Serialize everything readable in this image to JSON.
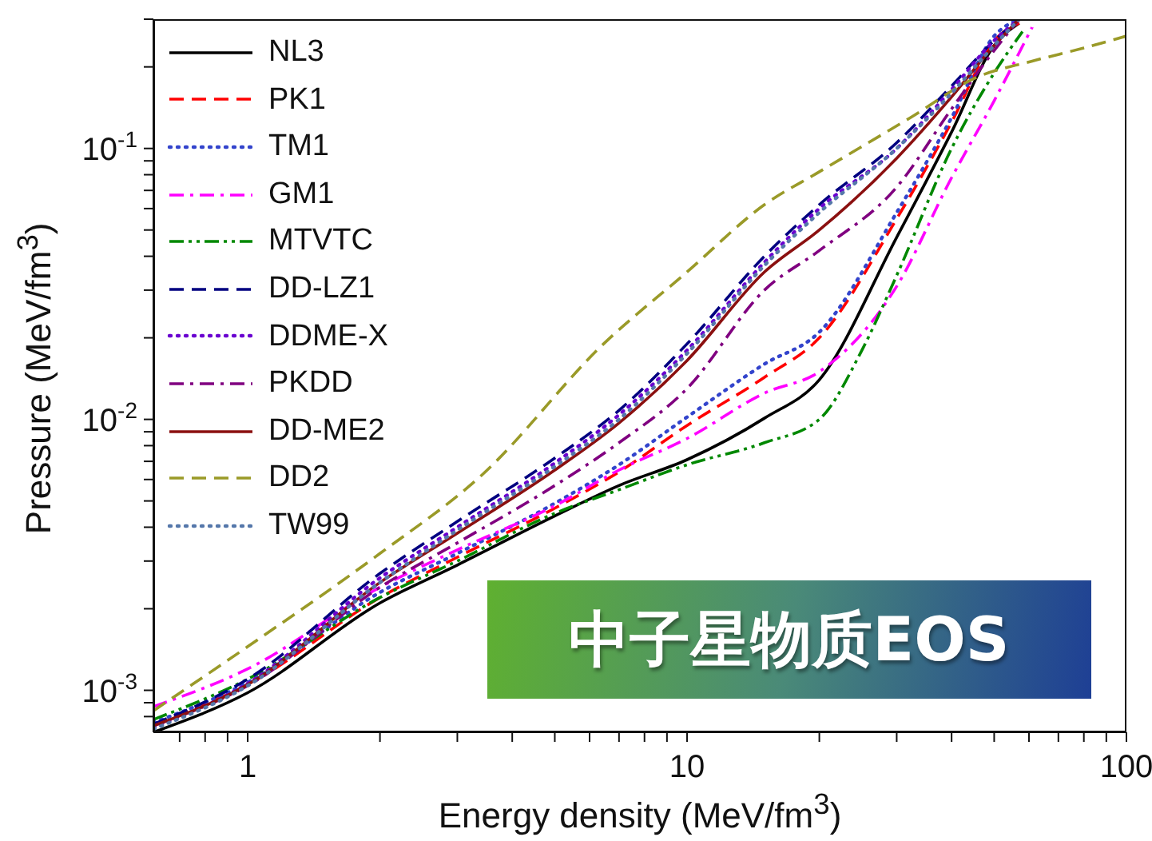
{
  "chart_data": {
    "type": "line",
    "xlabel": "Energy density (MeV/fm$^{3}$)",
    "ylabel": "Pressure (MeV/fm$^{3}$)",
    "log": "xy",
    "xlim": [
      0.61,
      100
    ],
    "ylim": [
      0.0007,
      0.3
    ],
    "xticks": [
      {
        "value": 0.7,
        "label": null
      },
      {
        "value": 0.8,
        "label": null
      },
      {
        "value": 0.9,
        "label": null
      },
      1,
      {
        "value": 2,
        "label": null
      },
      {
        "value": 3,
        "label": null
      },
      {
        "value": 4,
        "label": null
      },
      {
        "value": 5,
        "label": null
      },
      {
        "value": 6,
        "label": null
      },
      {
        "value": 7,
        "label": null
      },
      {
        "value": 8,
        "label": null
      },
      {
        "value": 9,
        "label": null
      },
      10,
      {
        "value": 20,
        "label": null
      },
      {
        "value": 30,
        "label": null
      },
      {
        "value": 40,
        "label": null
      },
      {
        "value": 50,
        "label": null
      },
      {
        "value": 60,
        "label": null
      },
      {
        "value": 70,
        "label": null
      },
      {
        "value": 80,
        "label": null
      },
      {
        "value": 90,
        "label": null
      },
      100
    ],
    "yticks": [
      {
        "value": 0.0008,
        "label": null
      },
      {
        "value": 0.0009,
        "label": null
      },
      {
        "value": 0.001,
        "label": "10$^{-3}$"
      },
      {
        "value": 0.002,
        "label": null
      },
      {
        "value": 0.003,
        "label": null
      },
      {
        "value": 0.004,
        "label": null
      },
      {
        "value": 0.005,
        "label": null
      },
      {
        "value": 0.006,
        "label": null
      },
      {
        "value": 0.007,
        "label": null
      },
      {
        "value": 0.008,
        "label": null
      },
      {
        "value": 0.009,
        "label": null
      },
      {
        "value": 0.01,
        "label": "10$^{-2}$"
      },
      {
        "value": 0.02,
        "label": null
      },
      {
        "value": 0.03,
        "label": null
      },
      {
        "value": 0.04,
        "label": null
      },
      {
        "value": 0.05,
        "label": null
      },
      {
        "value": 0.06,
        "label": null
      },
      {
        "value": 0.07,
        "label": null
      },
      {
        "value": 0.08,
        "label": null
      },
      {
        "value": 0.09,
        "label": null
      },
      {
        "value": 0.1,
        "label": "10$^{-1}$"
      },
      {
        "value": 0.2,
        "label": null
      },
      {
        "value": 0.3,
        "label": null
      }
    ],
    "grid": false,
    "legend": "top left",
    "marker": "none",
    "annotations": [
      "中子星物质EOS"
    ],
    "x": [
      0.61,
      1,
      2,
      3,
      5,
      7,
      10,
      15,
      20,
      30,
      40,
      50,
      57
    ],
    "series": [
      {
        "name": "NL3",
        "color": "#000000",
        "line_style": "solid",
        "values": [
          0.0007,
          0.00098,
          0.0021,
          0.0029,
          0.0044,
          0.0057,
          0.0071,
          0.0101,
          0.014,
          0.047,
          0.115,
          0.24,
          0.29
        ]
      },
      {
        "name": "PK1",
        "color": "#ff0000",
        "line_style": "dashed",
        "values": [
          0.00075,
          0.00105,
          0.0022,
          0.0031,
          0.0047,
          0.0064,
          0.0095,
          0.0143,
          0.02,
          0.055,
          0.125,
          0.25,
          0.29
        ]
      },
      {
        "name": "TM1",
        "color": "#3344cc",
        "line_style": "dotted",
        "values": [
          0.00076,
          0.00107,
          0.0023,
          0.0032,
          0.0049,
          0.0068,
          0.0102,
          0.016,
          0.021,
          0.058,
          0.13,
          0.26,
          0.3
        ]
      },
      {
        "name": "GM1",
        "color": "#ff00ff",
        "line_style": "dashdot",
        "x": [
          0.61,
          1,
          2,
          3,
          5,
          7,
          10,
          15,
          20,
          30,
          40,
          50,
          61
        ],
        "values": [
          0.00087,
          0.0012,
          0.0024,
          0.0033,
          0.0048,
          0.0065,
          0.0085,
          0.0125,
          0.015,
          0.031,
          0.078,
          0.15,
          0.28
        ]
      },
      {
        "name": "MTVTC",
        "color": "#008800",
        "line_style": "dashdotdot",
        "x": [
          0.61,
          1,
          2,
          3,
          5,
          7,
          10,
          15,
          20,
          25,
          30,
          40,
          50,
          58
        ],
        "values": [
          0.00078,
          0.0011,
          0.0022,
          0.003,
          0.0045,
          0.0055,
          0.0068,
          0.0082,
          0.01,
          0.018,
          0.034,
          0.1,
          0.19,
          0.27
        ]
      },
      {
        "name": "DD-LZ1",
        "color": "#000080",
        "line_style": "dashed",
        "values": [
          0.00075,
          0.0011,
          0.0027,
          0.0042,
          0.0072,
          0.0108,
          0.019,
          0.04,
          0.062,
          0.105,
          0.17,
          0.25,
          0.3
        ]
      },
      {
        "name": "DDME-X",
        "color": "#6a00d0",
        "line_style": "dotted",
        "values": [
          0.00073,
          0.00106,
          0.0026,
          0.004,
          0.0069,
          0.0104,
          0.018,
          0.038,
          0.06,
          0.1,
          0.165,
          0.25,
          0.3
        ]
      },
      {
        "name": "PKDD",
        "color": "#800080",
        "line_style": "dashdot",
        "values": [
          0.00074,
          0.00104,
          0.0024,
          0.0035,
          0.0057,
          0.0082,
          0.013,
          0.03,
          0.042,
          0.072,
          0.14,
          0.23,
          0.3
        ]
      },
      {
        "name": "DD-ME2",
        "color": "#8b1010",
        "line_style": "solid",
        "values": [
          0.00074,
          0.00105,
          0.0025,
          0.0038,
          0.0065,
          0.0097,
          0.0165,
          0.035,
          0.05,
          0.092,
          0.155,
          0.24,
          0.3
        ]
      },
      {
        "name": "DD2",
        "color": "#9a9a28",
        "line_style": "dashed",
        "x": [
          0.61,
          1,
          2,
          3.4,
          6.5,
          10,
          15,
          20,
          32,
          46,
          61,
          80,
          100
        ],
        "values": [
          0.00084,
          0.00145,
          0.0032,
          0.0062,
          0.0192,
          0.035,
          0.062,
          0.082,
          0.129,
          0.184,
          0.21,
          0.235,
          0.26
        ]
      },
      {
        "name": "TW99",
        "color": "#5577aa",
        "line_style": "dotted",
        "values": [
          0.00072,
          0.00104,
          0.0025,
          0.0039,
          0.0067,
          0.01,
          0.0175,
          0.037,
          0.058,
          0.1,
          0.16,
          0.24,
          0.3
        ]
      }
    ]
  }
}
